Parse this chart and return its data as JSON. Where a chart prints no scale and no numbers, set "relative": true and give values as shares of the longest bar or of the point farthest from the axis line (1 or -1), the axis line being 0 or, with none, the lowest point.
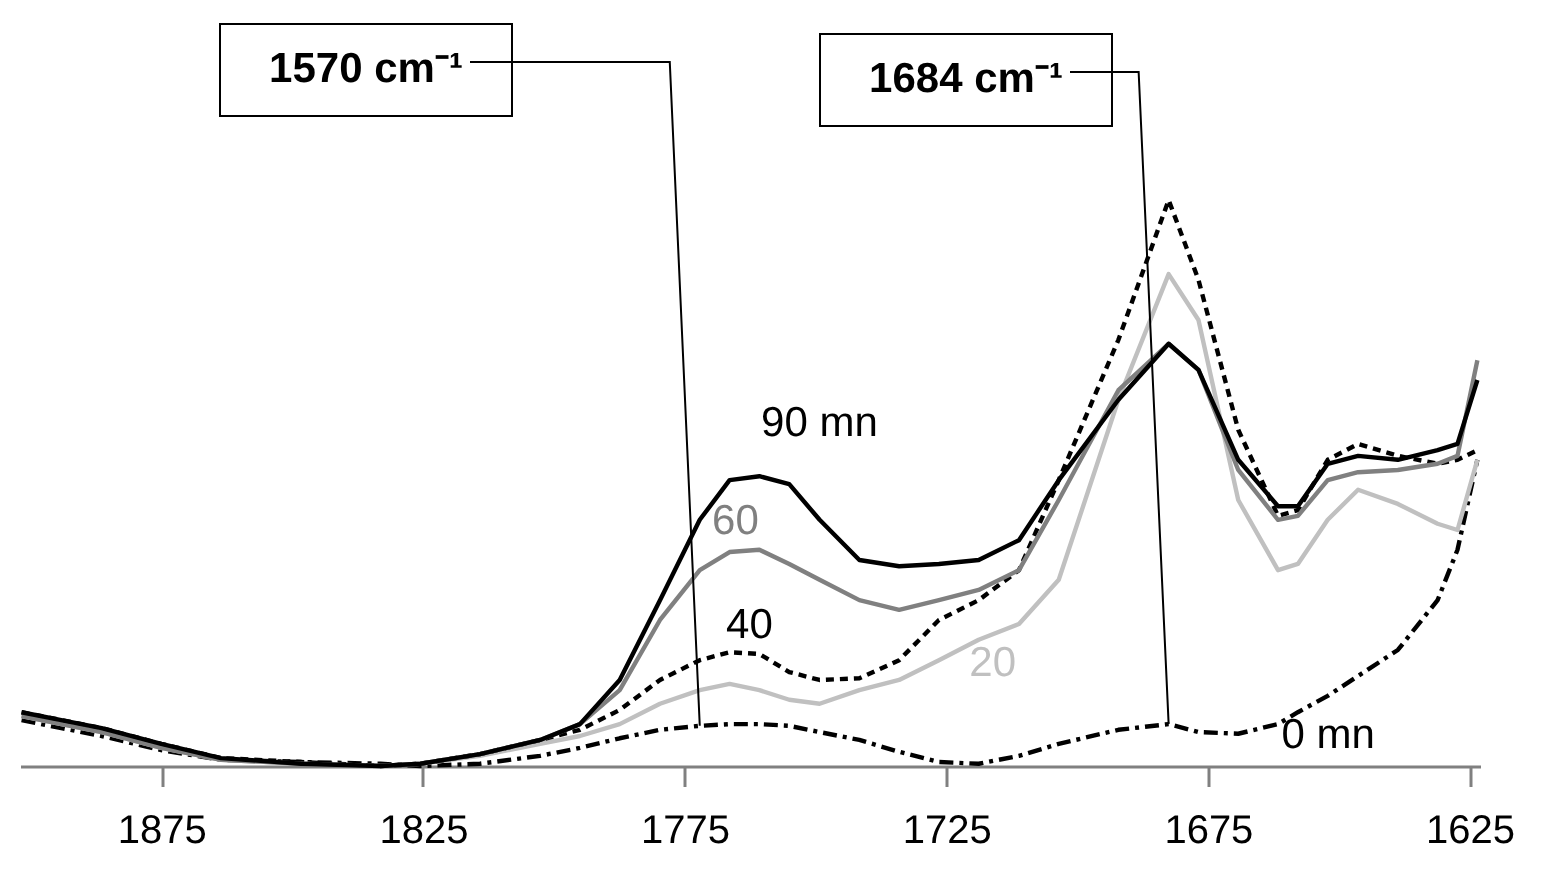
{
  "chart_data": {
    "type": "line",
    "relative": true,
    "xlim": [
      1902,
      1623
    ],
    "xticks": [
      1875,
      1825,
      1775,
      1725,
      1675,
      1625
    ],
    "grid": false,
    "marker": "none",
    "x": [
      1901.7,
      1894.1,
      1886.4,
      1875,
      1863.6,
      1848.3,
      1833.1,
      1825.5,
      1814.1,
      1802.6,
      1795,
      1787.4,
      1779.7,
      1772.1,
      1766.4,
      1760.7,
      1755,
      1749.2,
      1741.6,
      1734,
      1726.4,
      1718.8,
      1711.1,
      1703.5,
      1692.1,
      1682.5,
      1676.8,
      1669.2,
      1661.6,
      1657.8,
      1652.1,
      1646.3,
      1638.7,
      1631.1,
      1627.3,
      1623.5
    ],
    "series": [
      {
        "name": "0 mn",
        "color": "#000000",
        "line_style": "dashed",
        "values": [
          0.081,
          0.067,
          0.053,
          0.028,
          0.011,
          0.007,
          0.004,
          0,
          0.004,
          0.018,
          0.032,
          0.049,
          0.064,
          0.071,
          0.074,
          0.074,
          0.071,
          0.06,
          0.046,
          0.025,
          0.007,
          0.004,
          0.018,
          0.039,
          0.064,
          0.074,
          0.06,
          0.057,
          0.074,
          0.095,
          0.124,
          0.159,
          0.205,
          0.293,
          0.382,
          0.541
        ]
      },
      {
        "name": "20",
        "color": "#c0c0c0",
        "line_style": "solid",
        "values": [
          0.088,
          0.074,
          0.06,
          0.032,
          0.011,
          0.004,
          0,
          0.004,
          0.018,
          0.039,
          0.053,
          0.074,
          0.11,
          0.134,
          0.145,
          0.134,
          0.117,
          0.11,
          0.134,
          0.152,
          0.187,
          0.223,
          0.251,
          0.329,
          0.647,
          0.869,
          0.788,
          0.47,
          0.346,
          0.357,
          0.435,
          0.488,
          0.463,
          0.428,
          0.417,
          0.541
        ]
      },
      {
        "name": "40",
        "color": "#000000",
        "line_style": "dotted",
        "values": [
          0.095,
          0.081,
          0.067,
          0.039,
          0.014,
          0.007,
          0,
          0.004,
          0.021,
          0.046,
          0.064,
          0.099,
          0.152,
          0.187,
          0.201,
          0.198,
          0.166,
          0.152,
          0.155,
          0.187,
          0.258,
          0.293,
          0.346,
          0.505,
          0.753,
          1.0,
          0.859,
          0.594,
          0.442,
          0.452,
          0.541,
          0.569,
          0.548,
          0.534,
          0.541,
          0.558
        ]
      },
      {
        "name": "60",
        "color": "#808080",
        "line_style": "solid",
        "values": [
          0.088,
          0.074,
          0.06,
          0.032,
          0.011,
          0.004,
          0,
          0.004,
          0.021,
          0.046,
          0.074,
          0.134,
          0.258,
          0.346,
          0.378,
          0.382,
          0.357,
          0.329,
          0.293,
          0.276,
          0.293,
          0.311,
          0.346,
          0.47,
          0.664,
          0.746,
          0.7,
          0.523,
          0.435,
          0.442,
          0.505,
          0.519,
          0.523,
          0.534,
          0.548,
          0.717
        ]
      },
      {
        "name": "90 mn",
        "color": "#000000",
        "line_style": "solid",
        "values": [
          0.095,
          0.081,
          0.067,
          0.039,
          0.014,
          0.004,
          0,
          0.004,
          0.021,
          0.046,
          0.074,
          0.152,
          0.293,
          0.435,
          0.505,
          0.512,
          0.498,
          0.435,
          0.364,
          0.353,
          0.357,
          0.364,
          0.399,
          0.505,
          0.647,
          0.746,
          0.7,
          0.541,
          0.459,
          0.459,
          0.534,
          0.548,
          0.541,
          0.558,
          0.569,
          0.682
        ]
      }
    ],
    "annotations": [
      {
        "text": "1570 cm⁻¹",
        "x": 1772.1,
        "y": 0.071
      },
      {
        "text": "1684 cm⁻¹",
        "x": 1682.5,
        "y": 0.074
      }
    ]
  }
}
